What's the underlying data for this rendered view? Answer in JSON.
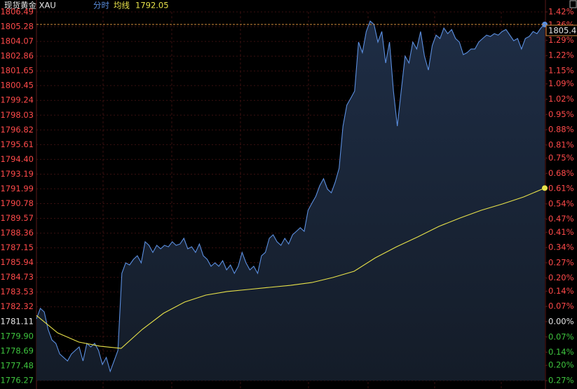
{
  "chart_data": {
    "type": "line",
    "title": "现货黄金 XAU",
    "series": [
      {
        "name": "分时",
        "color": "#5b8fe0",
        "values": [
          1781.33,
          1782.19,
          1781.9,
          1780.47,
          1779.6,
          1779.32,
          1778.45,
          1778.17,
          1777.88,
          1778.45,
          1778.74,
          1779.03,
          1777.88,
          1779.32,
          1779.03,
          1779.32,
          1778.74,
          1777.59,
          1778.17,
          1777.02,
          1777.88,
          1778.74,
          1785.06,
          1785.92,
          1785.75,
          1786.21,
          1786.5,
          1785.92,
          1787.65,
          1787.36,
          1786.78,
          1787.36,
          1787.07,
          1787.36,
          1787.24,
          1787.65,
          1787.36,
          1787.47,
          1787.93,
          1787.07,
          1787.24,
          1786.78,
          1787.47,
          1786.5,
          1786.21,
          1785.64,
          1785.92,
          1785.64,
          1786.1,
          1785.35,
          1785.75,
          1785.06,
          1785.64,
          1786.78,
          1785.92,
          1785.35,
          1785.64,
          1785.06,
          1786.5,
          1786.78,
          1787.93,
          1788.22,
          1787.65,
          1787.36,
          1787.93,
          1787.47,
          1788.22,
          1788.51,
          1788.8,
          1788.51,
          1790.23,
          1790.81,
          1791.38,
          1792.24,
          1792.82,
          1791.96,
          1791.67,
          1792.53,
          1793.68,
          1797.13,
          1798.85,
          1799.42,
          1800.0,
          1804.02,
          1803.16,
          1804.88,
          1805.74,
          1805.46,
          1804.02,
          1804.88,
          1802.3,
          1804.02,
          1800.0,
          1797.13,
          1800.0,
          1802.87,
          1802.3,
          1804.02,
          1803.45,
          1804.88,
          1802.87,
          1801.72,
          1803.73,
          1804.59,
          1804.31,
          1805.17,
          1804.71,
          1805.05,
          1804.31,
          1804.02,
          1802.99,
          1803.16,
          1803.45,
          1803.45,
          1804.02,
          1804.31,
          1804.59,
          1804.48,
          1804.71,
          1804.59,
          1804.88,
          1805.05,
          1804.59,
          1804.13,
          1804.31,
          1803.45,
          1804.31,
          1804.48,
          1804.88,
          1804.71,
          1805.17,
          1805.46
        ]
      },
      {
        "name": "均线",
        "color": "#e8e24a",
        "values": [
          1781.61,
          1780.18,
          1779.43,
          1779.09,
          1778.91,
          1780.47,
          1781.79,
          1782.71,
          1783.28,
          1783.57,
          1783.74,
          1783.91,
          1784.08,
          1784.31,
          1784.72,
          1785.23,
          1786.33,
          1787.24,
          1788.05,
          1788.91,
          1789.6,
          1790.23,
          1790.75,
          1791.32,
          1792.05
        ]
      }
    ],
    "ylim": [
      1776.27,
      1806.49
    ],
    "yticks": [
      1806.49,
      1805.28,
      1804.07,
      1802.86,
      1801.65,
      1800.45,
      1799.24,
      1798.03,
      1796.82,
      1795.61,
      {
        "value": 1794.4,
        "label": "1794.40"
      },
      1793.19,
      1791.99,
      1790.78,
      1789.57,
      1788.36,
      1787.15,
      1785.94,
      1784.73,
      1783.53,
      1782.32,
      1781.11,
      {
        "value": 1779.9,
        "label": "1779.90"
      },
      1778.69,
      1777.48,
      1776.27
    ],
    "y2lim": [
      -0.27,
      1.42
    ],
    "y2ticks": [
      {
        "value": 1.42,
        "label": "1.42%"
      },
      {
        "value": 1.36,
        "label": "1.36%"
      },
      {
        "value": 1.29,
        "label": "1.29%"
      },
      {
        "value": 1.22,
        "label": "1.22%"
      },
      {
        "value": 1.15,
        "label": "1.15%"
      },
      {
        "value": 1.09,
        "label": "1.09%"
      },
      {
        "value": 1.02,
        "label": "1.02%"
      },
      {
        "value": 0.95,
        "label": "0.95%"
      },
      {
        "value": 0.88,
        "label": "0.88%"
      },
      {
        "value": 0.81,
        "label": "0.81%"
      },
      {
        "value": 0.75,
        "label": "0.75%"
      },
      {
        "value": 0.68,
        "label": "0.68%"
      },
      {
        "value": 0.61,
        "label": "0.61%"
      },
      {
        "value": 0.54,
        "label": "0.54%"
      },
      {
        "value": 0.47,
        "label": "0.47%"
      },
      {
        "value": 0.41,
        "label": "0.41%"
      },
      {
        "value": 0.34,
        "label": "0.34%"
      },
      {
        "value": 0.27,
        "label": "0.27%"
      },
      {
        "value": 0.2,
        "label": "0.20%"
      },
      {
        "value": 0.14,
        "label": "0.14%"
      },
      {
        "value": 0.07,
        "label": "0.07%"
      },
      {
        "value": 0,
        "label": "0.00%"
      },
      {
        "value": -0.07,
        "label": "0.07%"
      },
      {
        "value": -0.14,
        "label": "0.14%"
      },
      {
        "value": -0.2,
        "label": "0.20%"
      },
      {
        "value": -0.27,
        "label": "0.27%"
      }
    ],
    "grid": true
  }
}
